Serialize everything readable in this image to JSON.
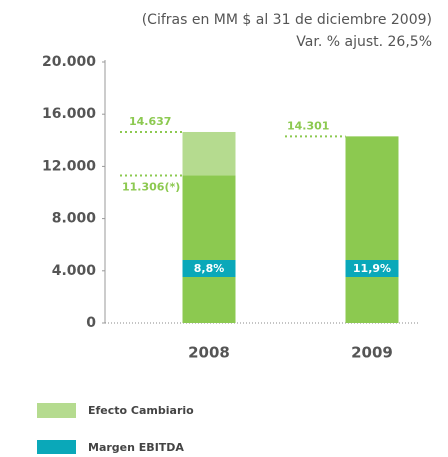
{
  "chart_data": {
    "type": "bar",
    "stacked": true,
    "subtitle": [
      "(Cifras en MM $ al 31 de diciembre 2009)",
      "Var. % ajust. 26,5%"
    ],
    "categories": [
      "2008",
      "2009"
    ],
    "ylim": [
      0,
      20000
    ],
    "yticks": [
      {
        "value": 0,
        "label": "0"
      },
      {
        "value": 4000,
        "label": "4.000"
      },
      {
        "value": 8000,
        "label": "8.000"
      },
      {
        "value": 12000,
        "label": "12.000"
      },
      {
        "value": 16000,
        "label": "16.000"
      },
      {
        "value": 20000,
        "label": "20.000"
      }
    ],
    "series": [
      {
        "color": "#8cc950",
        "values": [
          11306,
          14301
        ],
        "value_labels": [
          "11.306(*)",
          "14.301"
        ]
      },
      {
        "name": "Efecto Cambiario",
        "color": "#b5db8f",
        "values": [
          3331,
          null
        ]
      }
    ],
    "badge_series": {
      "name": "Margen EBITDA",
      "color": "#0aa8b9",
      "values": [
        8.8,
        11.9
      ],
      "value_labels": [
        "8,8%",
        "11,9%"
      ]
    },
    "annotations": [
      {
        "category": 0,
        "value": 14637,
        "label": "14.637"
      }
    ]
  }
}
